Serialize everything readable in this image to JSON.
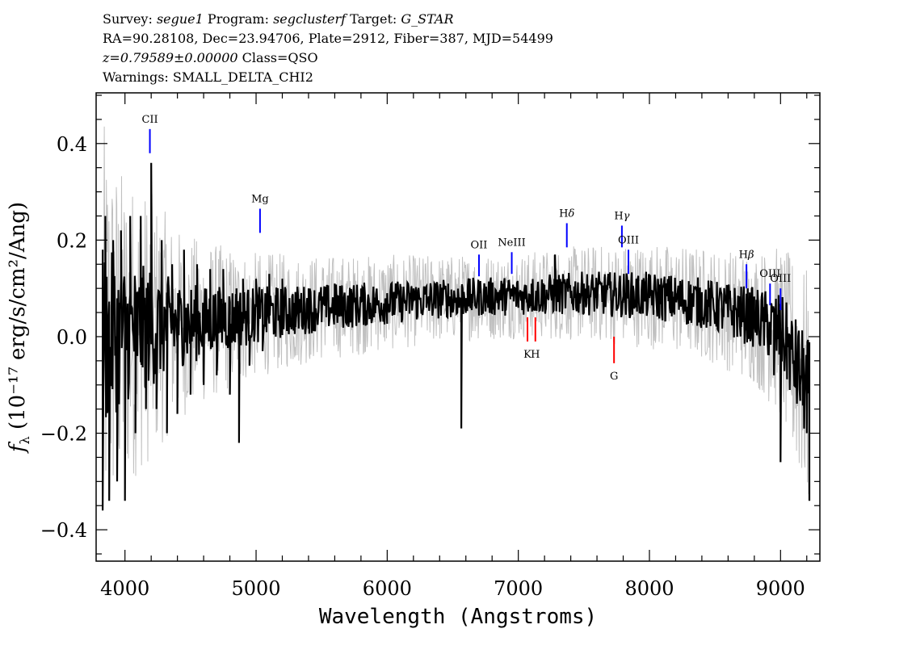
{
  "header": {
    "survey_label": "Survey:",
    "survey": "segue1",
    "program_label": "Program:",
    "program": "segclusterf",
    "target_label": "Target:",
    "target": "G_STAR",
    "line2": "RA=90.28108, Dec=23.94706, Plate=2912, Fiber=387, MJD=54499",
    "redshift": "z=0.79589±0.00000",
    "class_text": "Class=QSO",
    "warnings": "Warnings: SMALL_DELTA_CHI2"
  },
  "colors": {
    "flux": "#000000",
    "error": "#c0c0c0",
    "emission": "#0000ff",
    "absorption": "#ff0000"
  },
  "chart_data": {
    "type": "line",
    "title": "",
    "xlabel": "Wavelength (Angstroms)",
    "ylabel_main": "f",
    "ylabel_sub": "λ",
    "ylabel_rest": "(10⁻¹⁷ erg/s/cm²/Ang)",
    "xlim": [
      3780,
      9300
    ],
    "ylim": [
      -0.465,
      0.505
    ],
    "xticks": [
      4000,
      5000,
      6000,
      7000,
      8000,
      9000
    ],
    "yticks": [
      -0.4,
      -0.2,
      0.0,
      0.2,
      0.4
    ],
    "ytick_labels": [
      "−0.4",
      "−0.2",
      "0.0",
      "0.2",
      "0.4"
    ],
    "grid": false,
    "series": [
      {
        "role": "flux",
        "x": [
          3830,
          3850,
          3880,
          3910,
          3940,
          3970,
          4000,
          4040,
          4080,
          4120,
          4160,
          4200,
          4240,
          4280,
          4320,
          4360,
          4400,
          4450,
          4500,
          4550,
          4600,
          4650,
          4700,
          4750,
          4800,
          4850,
          4870,
          4900,
          4950,
          5000,
          5050,
          5100,
          5150,
          5200,
          5300,
          5400,
          5500,
          5600,
          5700,
          5800,
          5900,
          6000,
          6100,
          6200,
          6300,
          6400,
          6500,
          6550,
          6565,
          6580,
          6600,
          6650,
          6700,
          6800,
          6900,
          7000,
          7100,
          7200,
          7280,
          7300,
          7400,
          7500,
          7600,
          7700,
          7800,
          7900,
          8000,
          8100,
          8200,
          8300,
          8400,
          8500,
          8600,
          8700,
          8800,
          8900,
          8950,
          9000,
          9050,
          9100,
          9150,
          9200,
          9220
        ],
        "y": [
          -0.36,
          0.25,
          -0.34,
          0.2,
          -0.3,
          0.22,
          -0.34,
          0.25,
          -0.2,
          0.25,
          -0.15,
          0.36,
          -0.15,
          0.2,
          -0.2,
          0.15,
          -0.16,
          0.18,
          -0.12,
          0.15,
          -0.1,
          0.14,
          -0.08,
          0.14,
          -0.12,
          0.1,
          -0.22,
          0.12,
          -0.06,
          0.12,
          -0.03,
          0.13,
          0.0,
          0.12,
          0.02,
          0.1,
          0.03,
          0.11,
          0.05,
          0.1,
          0.04,
          0.09,
          0.05,
          0.1,
          0.06,
          0.09,
          0.05,
          0.06,
          -0.19,
          0.07,
          0.08,
          0.07,
          0.09,
          0.08,
          0.1,
          0.07,
          0.11,
          0.07,
          0.17,
          0.09,
          0.08,
          0.11,
          0.06,
          0.1,
          0.07,
          0.12,
          0.08,
          0.1,
          0.09,
          0.07,
          0.06,
          0.05,
          0.04,
          0.02,
          0.04,
          0.0,
          -0.08,
          -0.26,
          0.02,
          -0.05,
          -0.1,
          -0.2,
          -0.34
        ]
      },
      {
        "role": "error",
        "x": [
          3830,
          3900,
          4000,
          4100,
          4200,
          4300,
          4400,
          4600,
          4800,
          5000,
          5500,
          6000,
          6500,
          7000,
          7500,
          8000,
          8500,
          8800,
          9000,
          9200
        ],
        "y": [
          0.45,
          0.38,
          0.33,
          0.3,
          0.28,
          0.24,
          0.2,
          0.17,
          0.15,
          0.13,
          0.11,
          0.1,
          0.09,
          0.09,
          0.1,
          0.11,
          0.12,
          0.14,
          0.18,
          0.25
        ]
      }
    ],
    "line_markers": [
      {
        "label": "CII",
        "sub": "",
        "x": 4190,
        "y_low": 0.38,
        "y_high": 0.43,
        "kind": "emission"
      },
      {
        "label": "Mg",
        "sub": "",
        "x": 5030,
        "y_low": 0.215,
        "y_high": 0.265,
        "kind": "emission"
      },
      {
        "label": "OII",
        "sub": "",
        "x": 6700,
        "y_low": 0.125,
        "y_high": 0.17,
        "kind": "emission"
      },
      {
        "label": "NeIII",
        "sub": "",
        "x": 6950,
        "y_low": 0.13,
        "y_high": 0.175,
        "kind": "emission"
      },
      {
        "label": "H",
        "sub": "δ",
        "x": 7370,
        "y_low": 0.185,
        "y_high": 0.235,
        "kind": "emission"
      },
      {
        "label": "H",
        "sub": "γ",
        "x": 7790,
        "y_low": 0.185,
        "y_high": 0.23,
        "kind": "emission"
      },
      {
        "label": "OIII",
        "sub": "",
        "x": 7840,
        "y_low": 0.13,
        "y_high": 0.18,
        "kind": "emission"
      },
      {
        "label": "H",
        "sub": "β",
        "x": 8740,
        "y_low": 0.1,
        "y_high": 0.15,
        "kind": "emission"
      },
      {
        "label": "OIII",
        "sub": "",
        "x": 8920,
        "y_low": 0.065,
        "y_high": 0.11,
        "kind": "emission"
      },
      {
        "label": "OIII",
        "sub": "",
        "x": 9000,
        "y_low": 0.055,
        "y_high": 0.1,
        "kind": "emission"
      },
      {
        "label": "K",
        "sub": "",
        "x": 7070,
        "y_low": -0.01,
        "y_high": 0.04,
        "kind": "absorption"
      },
      {
        "label": "H",
        "sub": "",
        "x": 7130,
        "y_low": -0.01,
        "y_high": 0.04,
        "kind": "absorption"
      },
      {
        "label": "G",
        "sub": "",
        "x": 7730,
        "y_low": -0.055,
        "y_high": 0.0,
        "kind": "absorption"
      }
    ]
  }
}
